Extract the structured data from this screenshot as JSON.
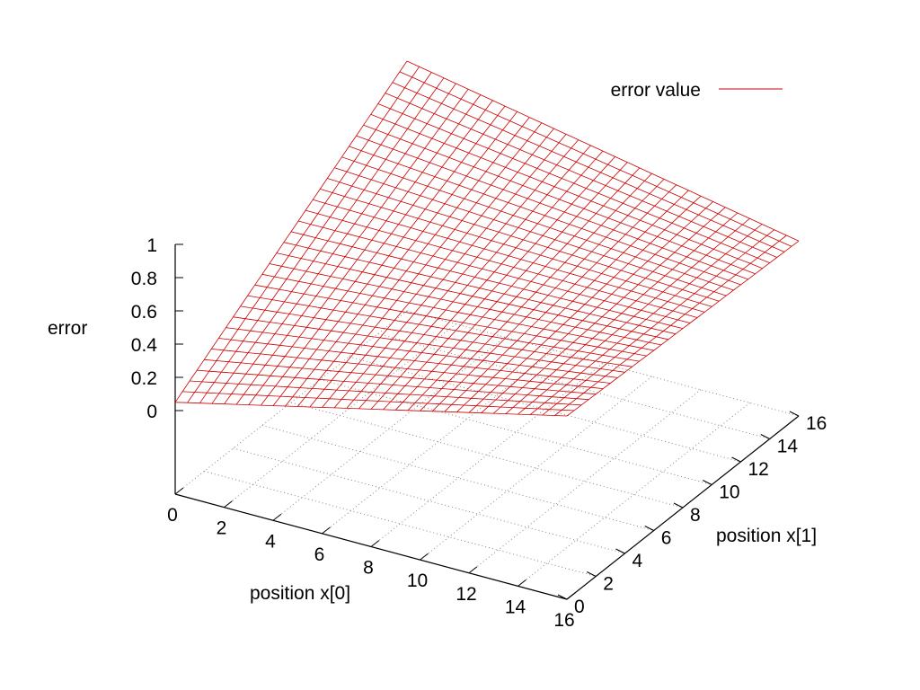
{
  "chart_data": {
    "type": "surface",
    "title": "",
    "xlabel": "position x[0]",
    "ylabel": "position x[1]",
    "zlabel": "error",
    "xlim": [
      0,
      16
    ],
    "ylim": [
      0,
      16
    ],
    "zlim": [
      0,
      1
    ],
    "xticks": [
      "0",
      "2",
      "4",
      "6",
      "8",
      "10",
      "12",
      "14",
      "16"
    ],
    "yticks": [
      "0",
      "2",
      "4",
      "6",
      "8",
      "10",
      "12",
      "14",
      "16"
    ],
    "zticks": [
      "0",
      "0.2",
      "0.4",
      "0.6",
      "0.8",
      "1"
    ],
    "grid": true,
    "legend_position": "top-right",
    "series": [
      {
        "name": "error value",
        "color": "#cc0000",
        "grid_points_per_axis": 33,
        "x_values": [
          0,
          16
        ],
        "y_values": [
          0,
          16
        ],
        "z_values": [
          [
            0.05,
            1.0
          ],
          [
            0.6,
            0.55
          ]
        ]
      }
    ]
  }
}
